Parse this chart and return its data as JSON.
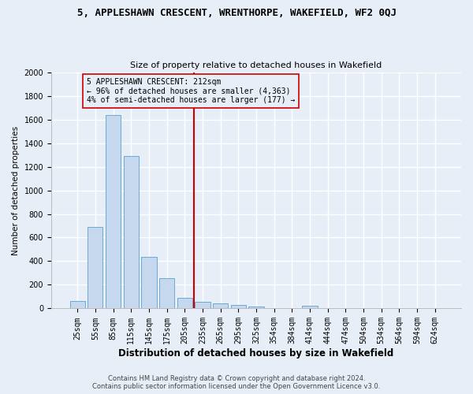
{
  "title": "5, APPLESHAWN CRESCENT, WRENTHORPE, WAKEFIELD, WF2 0QJ",
  "subtitle": "Size of property relative to detached houses in Wakefield",
  "xlabel": "Distribution of detached houses by size in Wakefield",
  "ylabel": "Number of detached properties",
  "categories": [
    "25sqm",
    "55sqm",
    "85sqm",
    "115sqm",
    "145sqm",
    "175sqm",
    "205sqm",
    "235sqm",
    "265sqm",
    "295sqm",
    "325sqm",
    "354sqm",
    "384sqm",
    "414sqm",
    "444sqm",
    "474sqm",
    "504sqm",
    "534sqm",
    "564sqm",
    "594sqm",
    "624sqm"
  ],
  "values": [
    65,
    690,
    1640,
    1290,
    435,
    255,
    90,
    55,
    40,
    30,
    15,
    0,
    0,
    20,
    0,
    0,
    0,
    0,
    0,
    0,
    0
  ],
  "bar_color": "#c5d8ee",
  "bar_edge_color": "#6aaad4",
  "vline_index": 6.5,
  "vline_color": "#cc0000",
  "ylim": [
    0,
    2000
  ],
  "yticks": [
    0,
    200,
    400,
    600,
    800,
    1000,
    1200,
    1400,
    1600,
    1800,
    2000
  ],
  "annotation_text": "5 APPLESHAWN CRESCENT: 212sqm\n← 96% of detached houses are smaller (4,363)\n4% of semi-detached houses are larger (177) →",
  "annotation_box_edge_color": "#cc0000",
  "footer_line1": "Contains HM Land Registry data © Crown copyright and database right 2024.",
  "footer_line2": "Contains public sector information licensed under the Open Government Licence v3.0.",
  "background_color": "#e8eef8",
  "grid_color": "#ffffff",
  "title_fontsize": 9,
  "subtitle_fontsize": 8,
  "xlabel_fontsize": 8.5,
  "ylabel_fontsize": 7.5,
  "tick_fontsize": 7,
  "annotation_fontsize": 7,
  "footer_fontsize": 6
}
